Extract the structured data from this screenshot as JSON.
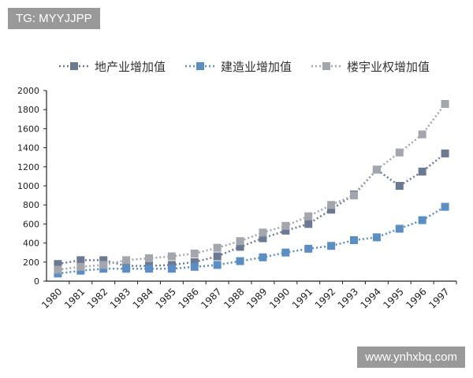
{
  "watermarks": {
    "top_left": "TG: MYYJJPP",
    "bottom_right": "www.ynhxbq.com"
  },
  "chart_data": {
    "type": "line",
    "title": "",
    "xlabel": "",
    "ylabel": "",
    "legend_position": "top",
    "grid": false,
    "ylim": [
      0,
      2000
    ],
    "yticks": [
      0,
      200,
      400,
      600,
      800,
      1000,
      1200,
      1400,
      1600,
      1800,
      2000
    ],
    "categories": [
      "1980",
      "1981",
      "1982",
      "1983",
      "1984",
      "1985",
      "1986",
      "1987",
      "1988",
      "1989",
      "1990",
      "1991",
      "1992",
      "1993",
      "1994",
      "1995",
      "1996",
      "1997"
    ],
    "series": [
      {
        "name": "地产业增加值",
        "color": "#6b7a92",
        "values": [
          180,
          220,
          220,
          160,
          160,
          170,
          200,
          260,
          360,
          450,
          530,
          600,
          750,
          910,
          1170,
          1000,
          1150,
          1340
        ]
      },
      {
        "name": "建造业增加值",
        "color": "#5b8ec4",
        "values": [
          80,
          110,
          130,
          130,
          130,
          130,
          150,
          170,
          210,
          250,
          300,
          340,
          370,
          430,
          460,
          550,
          640,
          780
        ]
      },
      {
        "name": "楼宇业权增加值",
        "color": "#a3a6ad",
        "values": [
          120,
          150,
          170,
          220,
          240,
          260,
          290,
          350,
          420,
          510,
          580,
          680,
          800,
          900,
          1170,
          1350,
          1540,
          1860
        ]
      }
    ]
  }
}
